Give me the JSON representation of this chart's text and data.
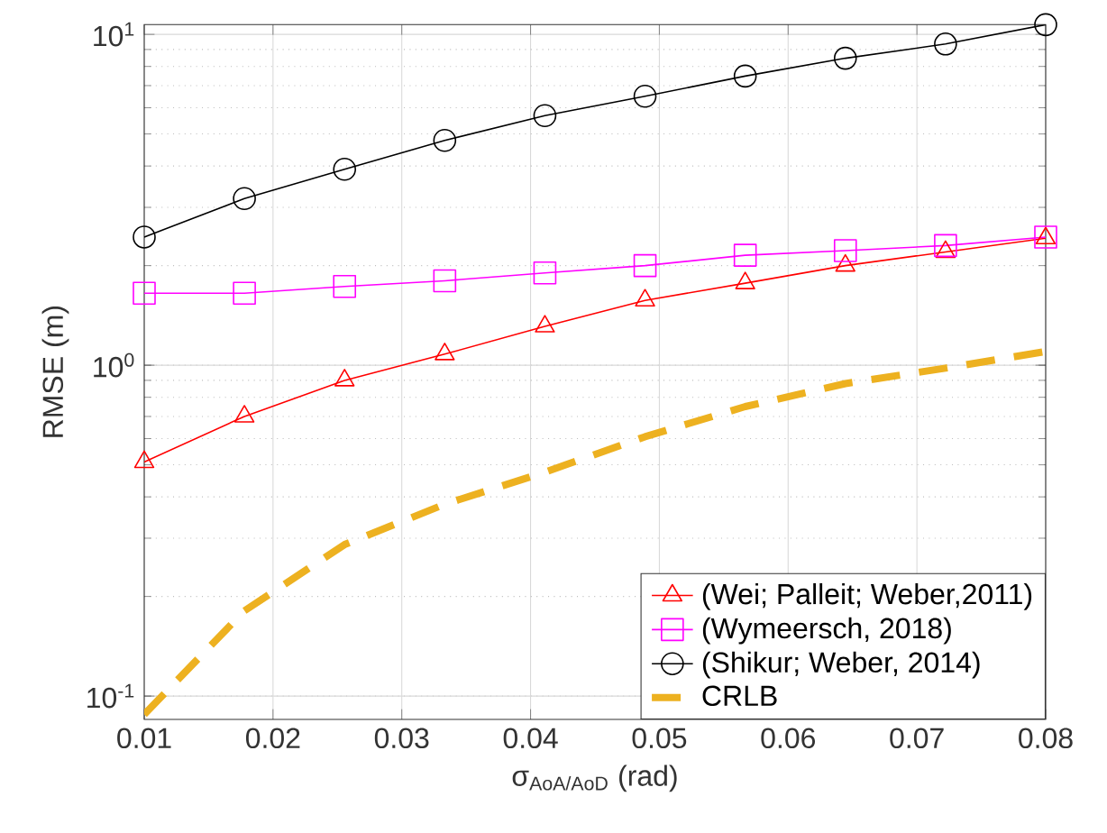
{
  "chart_data": {
    "type": "line",
    "xlabel": "σ$_{AoA/AoD}$ (rad)",
    "ylabel": "RMSE (m)",
    "x": [
      0.01,
      0.017778,
      0.025556,
      0.033333,
      0.041111,
      0.048889,
      0.056667,
      0.064444,
      0.072222,
      0.08
    ],
    "series": [
      {
        "name": "(Wei; Palleit; Weber,2011)",
        "color": "#ff0000",
        "marker": "triangle",
        "line_style": "solid",
        "values": [
          0.51,
          0.7,
          0.9,
          1.08,
          1.31,
          1.57,
          1.77,
          2.0,
          2.2,
          2.42
        ]
      },
      {
        "name": "(Wymeersch, 2018)",
        "color": "#ff00ff",
        "marker": "square",
        "line_style": "solid",
        "values": [
          1.65,
          1.65,
          1.73,
          1.8,
          1.9,
          2.0,
          2.15,
          2.22,
          2.3,
          2.44
        ]
      },
      {
        "name": "(Shikur; Weber, 2014)",
        "color": "#000000",
        "marker": "circle",
        "line_style": "solid",
        "values": [
          2.44,
          3.19,
          3.91,
          4.78,
          5.68,
          6.5,
          7.48,
          8.47,
          9.35,
          10.7
        ]
      },
      {
        "name": "CRLB",
        "color": "#edb120",
        "marker": "none",
        "line_style": "dashed",
        "values": [
          0.088,
          0.181,
          0.287,
          0.38,
          0.475,
          0.608,
          0.75,
          0.88,
          0.98,
          1.1
        ]
      }
    ],
    "log": "y",
    "grid": true,
    "legend": "bottom right",
    "xlim": [
      0.01,
      0.08
    ],
    "ylim": [
      0.085,
      10.7
    ],
    "xticks": [
      0.01,
      0.02,
      0.03,
      0.04,
      0.05,
      0.06,
      0.07,
      0.08
    ],
    "yticks": [
      {
        "value": 0.1,
        "label": "10$^{-1}$"
      },
      {
        "value": 1,
        "label": "10$^{0}$"
      },
      {
        "value": 10,
        "label": "10$^{1}$"
      }
    ]
  }
}
